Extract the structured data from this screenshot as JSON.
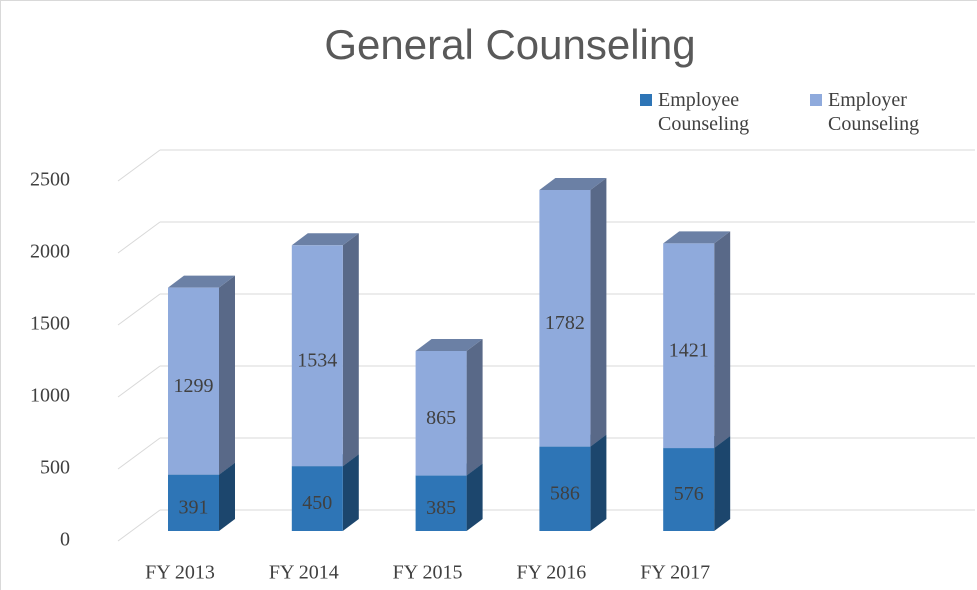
{
  "chart_data": {
    "type": "bar3d_stacked",
    "title": "General Counseling",
    "categories": [
      "FY 2013",
      "FY 2014",
      "FY 2015",
      "FY 2016",
      "FY 2017"
    ],
    "series": [
      {
        "name": "Employee Counseling",
        "color": "#2e75b6",
        "values": [
          391,
          450,
          385,
          586,
          576
        ]
      },
      {
        "name": "Employer Counseling",
        "color": "#8faadc",
        "values": [
          1299,
          1534,
          865,
          1782,
          1421
        ]
      }
    ],
    "ylim": [
      0,
      2500
    ],
    "yticks": [
      0,
      500,
      1000,
      1500,
      2000,
      2500
    ],
    "grid": true,
    "legend": "top-right"
  }
}
